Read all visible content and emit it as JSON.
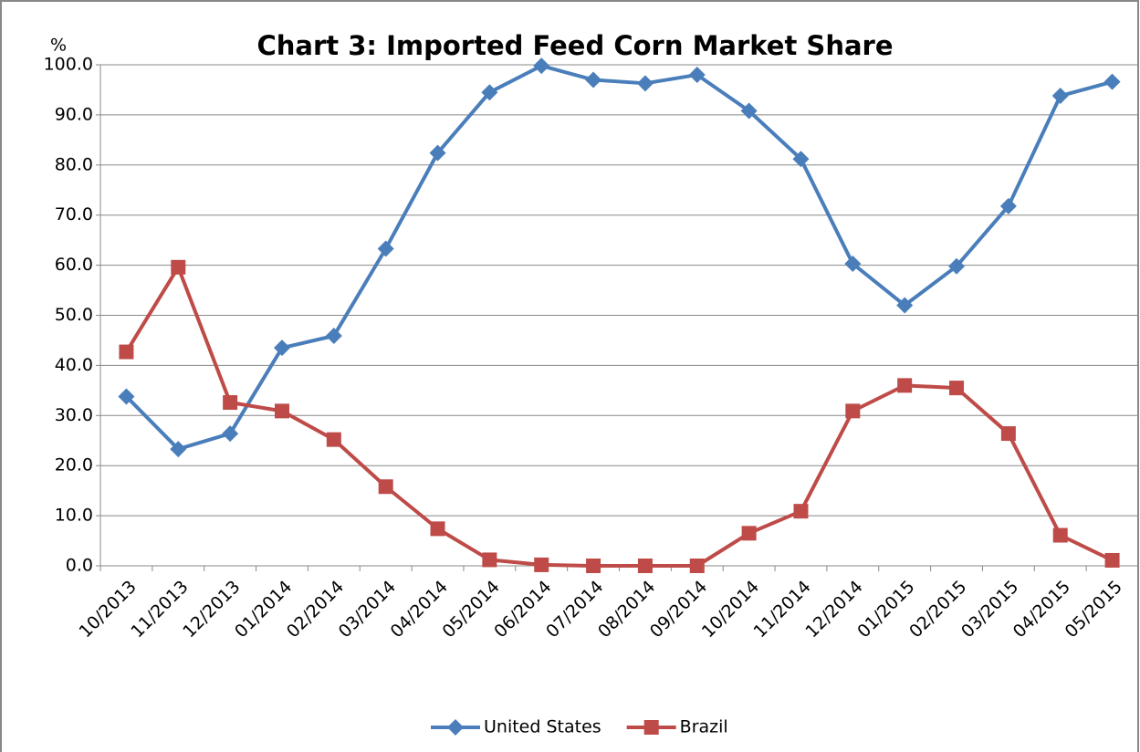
{
  "chart_data": {
    "type": "line",
    "title": "Chart 3: Imported Feed Corn Market Share",
    "ylabel": "%",
    "categories": [
      "10/2013",
      "11/2013",
      "12/2013",
      "01/2014",
      "02/2014",
      "03/2014",
      "04/2014",
      "05/2014",
      "06/2014",
      "07/2014",
      "08/2014",
      "09/2014",
      "10/2014",
      "11/2014",
      "12/2014",
      "01/2015",
      "02/2015",
      "03/2015",
      "04/2015",
      "05/2015"
    ],
    "series": [
      {
        "name": "United States",
        "color": "#4a7ebb",
        "marker": "diamond",
        "values": [
          33.8,
          23.3,
          26.4,
          43.5,
          45.9,
          63.3,
          82.4,
          94.5,
          99.8,
          97.0,
          96.3,
          98.0,
          90.8,
          81.2,
          60.3,
          52.0,
          59.8,
          71.8,
          93.8,
          96.6
        ]
      },
      {
        "name": "Brazil",
        "color": "#be4b48",
        "marker": "square",
        "values": [
          42.7,
          59.6,
          32.6,
          30.9,
          25.2,
          15.8,
          7.4,
          1.2,
          0.2,
          0.0,
          0.0,
          0.0,
          6.5,
          10.9,
          30.9,
          36.0,
          35.5,
          26.4,
          6.1,
          1.1
        ]
      }
    ],
    "ylim": [
      0,
      100
    ],
    "yticks": [
      {
        "value": 0,
        "label": "0.0"
      },
      {
        "value": 10,
        "label": "10.0"
      },
      {
        "value": 20,
        "label": "20.0"
      },
      {
        "value": 30,
        "label": "30.0"
      },
      {
        "value": 40,
        "label": "40.0"
      },
      {
        "value": 50,
        "label": "50.0"
      },
      {
        "value": 60,
        "label": "60.0"
      },
      {
        "value": 70,
        "label": "70.0"
      },
      {
        "value": 80,
        "label": "80.0"
      },
      {
        "value": 90,
        "label": "90.0"
      },
      {
        "value": 100,
        "label": "100.0"
      }
    ],
    "grid": true,
    "legend": "bottom"
  }
}
